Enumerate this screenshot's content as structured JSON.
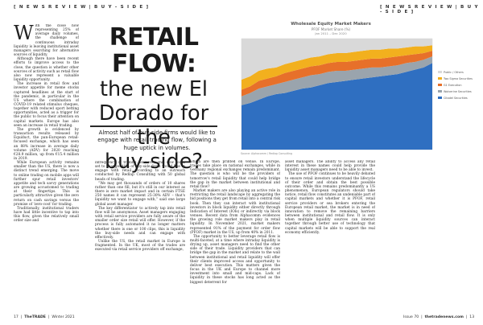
{
  "header": {
    "left_tag": "[ N E W S   R E V I E W  |  B U Y - S I D E ]",
    "right_tag": "[ N E W S   R E V I E W  |  B U Y - S I D E ]"
  },
  "headline": {
    "main": "RETAIL FLOW:",
    "line2": "the new El",
    "line3": "Dorado for the",
    "line4": "buy-side?"
  },
  "standfirst": "Almost half of buy-side firms would like to engage with retail trading flow, following a huge uptick in volumes.",
  "columns": {
    "col1_dropcap": "W",
    "col1": [
      "ith the close now representing 25% of average daily volumes, the challenge of continuous intraday liquidity is leaving institutional asset managers searching for alternative sources of liquidity.",
      "Although there have been recent efforts to improve access to the close, the question is whether other sources of activity such as retail flow also now represent a valuable liquidity opportunity.",
      "The increase in retail flow and investor appetite for meme stocks captured headlines at the start of the pandemic, in particular in the US where the combination of COVID-19 related stimulus cheques, together with reduced sport betting opportunities, acted as a trigger for the public to focus their attention on capital markets. Europe has also seen an increase in retail trading.",
      "The growth is evidenced by transaction results released by Equiduct, the pan-European retail-focused exchange, which has seen an 88% increase in average daily volume (ADV) for 2020 reaching €28.9 million, up from €15.4 million in 2019.",
      "While European activity remains smaller than the US, there is now a distinct trend emerging. The move to online trading on mobile apps will further spur retail investors' appetite and tech savvy generations are growing accustomed to trading at their fingertips. This is particularly attractive given the zero return on cash savings versus the promise of 'zero-cost' for trading.",
      "Traditionally, institutional traders have had little incentive to tap into this flow, given the relatively small order size and"
    ],
    "col2": [
      "infrequency of trading. However, this now looks set to change: 48% of buy-side firms would like to engage with retail according to an outreach conducted by Redlap Consulting with 50 global heads of trading.",
      "“We may get thousands of orders of 10 shares rather than one fill, but it's still in our interest as there is zero market impact and in certain FTSE 250 names it can represent 25-30% ADV – that's liquidity we want to engage with,” said one large global asset manager.",
      "The key differentiator to actively tap into retail flow will be anonymous. Asset managers engaging with retail service providers are fully aware of the smaller order size retail will offer. However, if the process is fully automated it no longer matters whether there is one or 100 clips, this is liquidity the buy-side needs and can engage with effectively.",
      "Unlike the US, the retail market in Europe is fragmented. In the UK, most of the trades are executed via retail service providers off exchange,"
    ],
    "col3": [
      "which are then printed on venue. In Europe, trades take place on national exchanges, while in Germany regional exchanges remain predominant. The question is who will be the providers of tomorrow's retail liquidity that could help bridge the gap in the market between institutional and retail flow?",
      "Market makers are also playing an active role in restricting the retail landscape by aggregating the bid positions they get from retail into a central risk book. Then they can interact with institutional investors in block liquidity either directly through Indication of Interest (IOIs) or indirectly via block venues. Recent data from Alphacomm evidences the growing role market makers play in retail liquidity. In November 2021, market makers represented 91% of the payment for order flow (PFOF) market in the US, up from 40% in 2011.",
      "The opportunity to better leverage retail flow is multi-faceted, at a time where intraday liquidity is drying up, asset managers need to find the other side of their trade. Liquidity providers that can bridge the gap in the market and relate to the wall between institutional and retail liquidity will offer their clients improved access and opportunity to deliver best execution. This matters given the focus in the UK and Europe to channel more investment into small and mid-caps. Lack of liquidity in these stocks has long acted as the biggest deterrent for"
    ],
    "col4": [
      "asset managers. The ability to access any retail interest in these names could help provide the liquidity asset managers need to be able to invest.",
      "The use of PFOF continues to be heavily debated to ensure retail investors understand the lifecycle of their order and obtain the best possible outcome. While this remains predominantly a US phenomenon, European regulators should take notice, retail flow constitutes an undeniable part of capital markets and whether it is PFOF, retail service providers or sea brokers entering the European retail market, the market is in need of innovation to remove the remaining barriers between institutional and retail flow. It is only when multiple liquidity sources can interact together through better use of technology that capital markets will be able to support the real economy efficiently."
    ]
  },
  "chart_data": {
    "type": "area",
    "title": "Wholesale Equity Market Makers",
    "subtitle": "PFOF Market Share (%)",
    "period": "Jan 2011 – Dec 2020",
    "source": "Source: Alphacomm / Redlap Consulting",
    "legend_position": "right",
    "legend": [
      "Public / Others",
      "Two Sigma Securities",
      "G1 Execution",
      "Wolverine Securities",
      "Citadel Securities"
    ],
    "colors": [
      "#d9d9d9",
      "#f2b01e",
      "#e7702a",
      "#9aa4ad",
      "#2f6fc1"
    ],
    "x_start": "2011-01",
    "x_end": "2020-12",
    "ylim": [
      0,
      100
    ],
    "series": [
      {
        "name": "Citadel Securities",
        "values": [
          40,
          42,
          45,
          48,
          50,
          51,
          53,
          55,
          56,
          58,
          60,
          61,
          62,
          63,
          64,
          65,
          66,
          67,
          68,
          70,
          72,
          74,
          78
        ]
      },
      {
        "name": "Wolverine Securities",
        "values": [
          8,
          9,
          10,
          9,
          9,
          10,
          10,
          10,
          11,
          10,
          10,
          10,
          9,
          9,
          9,
          9,
          8,
          8,
          8,
          8,
          7,
          7,
          6
        ]
      },
      {
        "name": "G1 Execution",
        "values": [
          6,
          6,
          7,
          7,
          7,
          8,
          8,
          8,
          8,
          8,
          8,
          8,
          8,
          8,
          8,
          8,
          8,
          8,
          8,
          7,
          7,
          6,
          5
        ]
      },
      {
        "name": "Two Sigma Securities",
        "values": [
          9,
          9,
          9,
          9,
          8,
          8,
          8,
          8,
          8,
          8,
          8,
          8,
          8,
          8,
          8,
          8,
          8,
          8,
          7,
          7,
          7,
          6,
          5
        ]
      },
      {
        "name": "Public / Others",
        "values": [
          37,
          34,
          29,
          27,
          26,
          23,
          21,
          19,
          17,
          16,
          14,
          13,
          13,
          12,
          11,
          10,
          10,
          9,
          9,
          8,
          7,
          7,
          6
        ]
      }
    ]
  },
  "footer": {
    "left_page": "17",
    "left_mag": "TheTRADE",
    "left_issue": "Winter 2021",
    "right_issue": "Issue 70",
    "right_site": "thetradenews.com",
    "right_page": "13"
  }
}
